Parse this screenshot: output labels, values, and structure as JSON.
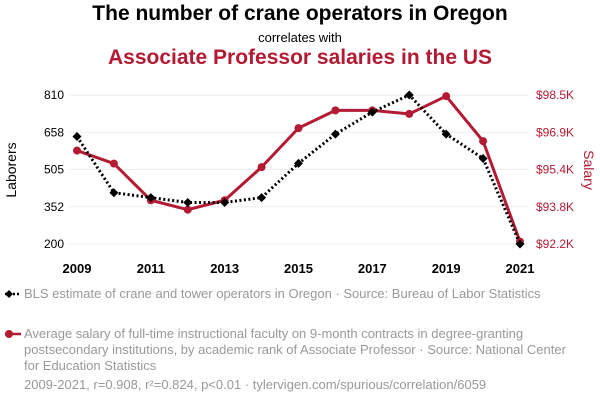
{
  "title": {
    "line1": "The number of crane operators in Oregon",
    "line2": "correlates with",
    "line3": "Associate Professor salaries in the US"
  },
  "colors": {
    "series1": "#000000",
    "series2": "#b31b34",
    "muted": "#999999"
  },
  "chart_data": {
    "type": "line",
    "x": [
      2009,
      2010,
      2011,
      2012,
      2013,
      2014,
      2015,
      2016,
      2017,
      2018,
      2019,
      2020,
      2021
    ],
    "xticks": [
      "2009",
      "2011",
      "2013",
      "2015",
      "2017",
      "2019",
      "2021"
    ],
    "series": [
      {
        "name": "Laborers",
        "axis": "left",
        "style": "dotted",
        "marker": "diamond",
        "values": [
          640,
          410,
          390,
          370,
          370,
          390,
          530,
          650,
          740,
          810,
          650,
          550,
          200
        ]
      },
      {
        "name": "Salary",
        "axis": "right",
        "style": "solid",
        "marker": "circle",
        "values": [
          96.15,
          95.6,
          94.05,
          93.65,
          94.05,
          95.45,
          97.1,
          97.85,
          97.85,
          97.7,
          98.45,
          96.55,
          92.3
        ]
      }
    ],
    "left_axis": {
      "label": "Laborers",
      "range": [
        200,
        810
      ],
      "ticks": [
        "810",
        "658",
        "505",
        "352",
        "200"
      ]
    },
    "right_axis": {
      "label": "Salary",
      "range": [
        92.2,
        98.5
      ],
      "ticks": [
        "$98.5K",
        "$96.9K",
        "$95.4K",
        "$93.8K",
        "$92.2K"
      ]
    }
  },
  "legend": {
    "series1": "BLS estimate of crane and tower operators in Oregon · Source: Bureau of Labor Statistics",
    "series2": "Average salary of full-time instructional faculty on 9-month contracts in degree-granting postsecondary institutions, by academic rank of Associate Professor · Source: National Center for Education Statistics"
  },
  "footer": "2009-2021, r=0.908, r²=0.824, p<0.01 · tylervigen.com/spurious/correlation/6059"
}
